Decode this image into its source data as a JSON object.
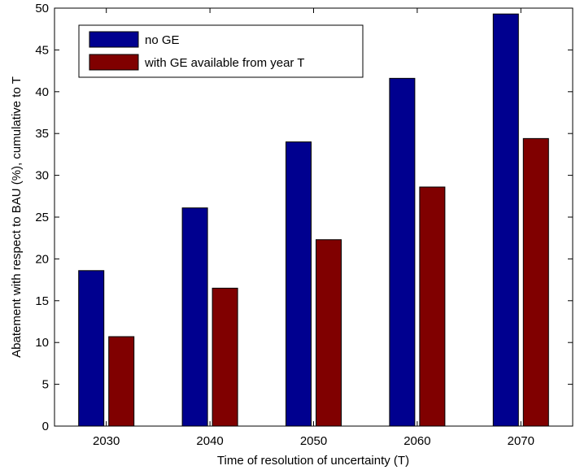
{
  "chart_data": {
    "type": "bar",
    "categories": [
      "2030",
      "2040",
      "2050",
      "2060",
      "2070"
    ],
    "series": [
      {
        "name": "no GE",
        "color": "#00008f",
        "values": [
          18.6,
          26.1,
          34.0,
          41.6,
          49.3
        ]
      },
      {
        "name": "with GE available from year T",
        "color": "#800000",
        "values": [
          10.7,
          16.5,
          22.3,
          28.6,
          34.4
        ]
      }
    ],
    "title": "",
    "xlabel": "Time of resolution of uncertainty (T)",
    "ylabel": "Abatement with respect to BAU (%), cumulative to T",
    "ylim": [
      0,
      50
    ],
    "yticks": [
      0,
      5,
      10,
      15,
      20,
      25,
      30,
      35,
      40,
      45,
      50
    ],
    "grid": false,
    "legend_position": "top-left"
  }
}
